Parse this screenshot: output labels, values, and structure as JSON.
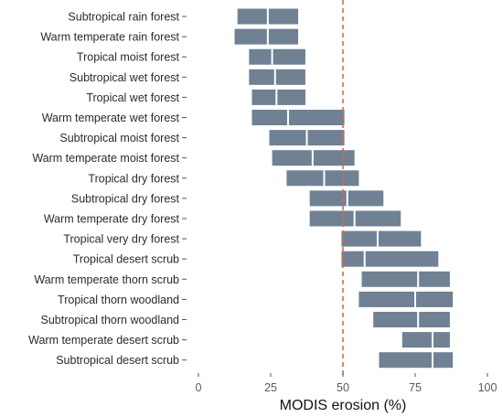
{
  "chart_data": {
    "type": "range-bar",
    "xlabel": "MODIS erosion (%)",
    "xlim": [
      0,
      100
    ],
    "xticks": [
      0,
      25,
      50,
      75,
      100
    ],
    "reference_line": 50,
    "categories": [
      "Subtropical rain forest",
      "Warm temperate rain forest",
      "Tropical moist forest",
      "Subtropical wet forest",
      "Tropical wet forest",
      "Warm temperate wet forest",
      "Subtropical moist forest",
      "Warm temperate moist forest",
      "Tropical dry forest",
      "Subtropical dry forest",
      "Warm temperate dry forest",
      "Tropical very dry forest",
      "Tropical desert scrub",
      "Warm temperate thorn scrub",
      "Tropical thorn woodland",
      "Subtropical thorn woodland",
      "Warm temperate desert scrub",
      "Subtropical desert scrub"
    ],
    "low": [
      13.5,
      12.5,
      17.5,
      17.5,
      18.5,
      18.5,
      24.5,
      25.5,
      30.5,
      38.5,
      38.5,
      49.5,
      49.5,
      56.5,
      55.5,
      60.5,
      70.5,
      62.5
    ],
    "median": [
      24,
      24,
      25.5,
      26.5,
      27,
      31,
      37.5,
      39.5,
      43.5,
      51.5,
      54,
      62,
      57.5,
      76,
      75,
      76,
      81,
      81
    ],
    "high": [
      34.5,
      34.5,
      37,
      37,
      37,
      50.5,
      50.5,
      54,
      55.5,
      64,
      70,
      77,
      83,
      87,
      88,
      87,
      87,
      88
    ],
    "colors": {
      "bar": "#6f8193",
      "reference": "#e4624a"
    }
  }
}
